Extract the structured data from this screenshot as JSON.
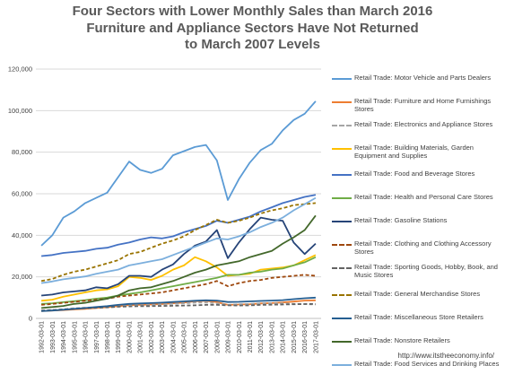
{
  "title_lines": [
    "Four Sectors with Lower Monthly Sales than March 2016",
    "Furniture and Appliance Sectors Have Not Returned",
    "to March 2007 Levels"
  ],
  "source": "http://www.itstheeconomy.info/",
  "chart_data": {
    "type": "line",
    "title": "Four Sectors with Lower Monthly Sales than March 2016 Furniture and Appliance Sectors Have Not Returned to March 2007 Levels",
    "xlabel": "",
    "ylabel": "",
    "ylim": [
      0,
      120000
    ],
    "yticks": [
      0,
      20000,
      40000,
      60000,
      80000,
      100000,
      120000
    ],
    "ytick_labels": [
      "0",
      "20,000",
      "40,000",
      "60,000",
      "80,000",
      "100,000",
      "120,000"
    ],
    "grid": true,
    "legend_position": "right",
    "x": [
      "1992-03-01",
      "1993-03-01",
      "1994-03-01",
      "1995-03-01",
      "1996-03-01",
      "1997-03-01",
      "1998-03-01",
      "1999-03-01",
      "2000-03-01",
      "2001-03-01",
      "2002-03-01",
      "2003-03-01",
      "2004-03-01",
      "2005-03-01",
      "2006-03-01",
      "2007-03-01",
      "2008-03-01",
      "2009-03-01",
      "2010-03-01",
      "2011-03-01",
      "2012-03-01",
      "2013-03-01",
      "2014-03-01",
      "2015-03-01",
      "2016-03-01",
      "2017-03-01"
    ],
    "series": [
      {
        "name": "Retail Trade: Motor Vehicle and Parts Dealers",
        "color": "#5b9bd5",
        "dashed": false,
        "values": [
          35000,
          40000,
          48500,
          51500,
          55500,
          58000,
          60500,
          68000,
          75500,
          71500,
          70000,
          72000,
          78500,
          80500,
          82500,
          83500,
          76000,
          57000,
          67000,
          75000,
          81000,
          84000,
          90500,
          95500,
          98500,
          104500
        ]
      },
      {
        "name": "Retail Trade: Furniture and Home Furnishings Stores",
        "color": "#ed7d31",
        "dashed": false,
        "values": [
          3500,
          3800,
          4000,
          4300,
          4600,
          5000,
          5400,
          5900,
          6400,
          6500,
          6700,
          6900,
          7300,
          7600,
          8300,
          8500,
          7800,
          6500,
          6700,
          6800,
          7200,
          7400,
          7700,
          8100,
          8600,
          8700
        ]
      },
      {
        "name": "Retail Trade: Electronics and Appliance Stores",
        "color": "#a5a5a5",
        "dashed": true,
        "values": [
          3700,
          4000,
          4400,
          4900,
          5200,
          5400,
          5500,
          5800,
          6300,
          6300,
          6500,
          6700,
          7000,
          7300,
          7600,
          7600,
          7300,
          6500,
          6800,
          7000,
          7300,
          7300,
          7200,
          7000,
          6900,
          6700
        ]
      },
      {
        "name": "Retail Trade: Building Materials, Garden Equipment and Supplies",
        "color": "#ffc000",
        "dashed": false,
        "values": [
          8500,
          9000,
          10500,
          11500,
          12500,
          13500,
          14000,
          15500,
          20000,
          19500,
          18500,
          20500,
          23500,
          25500,
          29500,
          27500,
          24500,
          20500,
          21000,
          21500,
          23500,
          24000,
          24500,
          25500,
          28000,
          30500
        ]
      },
      {
        "name": "Retail Trade: Food and Beverage Stores",
        "color": "#4472c4",
        "dashed": false,
        "values": [
          30000,
          30500,
          31500,
          32000,
          32500,
          33500,
          34000,
          35500,
          36500,
          38000,
          39000,
          38500,
          39500,
          41500,
          43000,
          44500,
          47000,
          46000,
          47500,
          49000,
          51500,
          53500,
          55500,
          57000,
          58500,
          59500
        ]
      },
      {
        "name": "Retail Trade: Health and Personal Care Stores",
        "color": "#70ad47",
        "dashed": false,
        "values": [
          7000,
          7300,
          7800,
          8300,
          8800,
          9500,
          10000,
          11000,
          11800,
          12500,
          13500,
          14500,
          15500,
          16500,
          17500,
          18500,
          19500,
          21000,
          21000,
          22000,
          22500,
          23500,
          24000,
          25500,
          27000,
          29500
        ]
      },
      {
        "name": "Retail Trade: Gasoline Stations",
        "color": "#264478",
        "dashed": false,
        "values": [
          11000,
          11500,
          12500,
          13000,
          13500,
          15000,
          14500,
          16500,
          20500,
          20500,
          20000,
          23500,
          26000,
          31000,
          35000,
          37000,
          42500,
          29000,
          36500,
          43000,
          48500,
          47500,
          47000,
          36500,
          31000,
          36000
        ]
      },
      {
        "name": "Retail Trade: Clothing and Clothing Accessory Stores",
        "color": "#9e480e",
        "dashed": true,
        "values": [
          6500,
          7000,
          7500,
          8000,
          8500,
          9000,
          9500,
          10500,
          11000,
          11500,
          12000,
          12500,
          13500,
          14500,
          15500,
          16500,
          18000,
          15500,
          17000,
          18000,
          18500,
          19500,
          20000,
          20500,
          21000,
          20500
        ]
      },
      {
        "name": "Retail Trade: Sporting Goods, Hobby, Book, and Music Stores",
        "color": "#636363",
        "dashed": true,
        "values": [
          3800,
          4000,
          4300,
          4600,
          4900,
          5100,
          5300,
          5600,
          5800,
          5900,
          5900,
          6000,
          6100,
          6200,
          6300,
          6500,
          6500,
          6300,
          6200,
          6300,
          6500,
          6600,
          6700,
          6800,
          6900,
          7000
        ]
      },
      {
        "name": "Retail Trade: General Merchandise Stores",
        "color": "#997300",
        "dashed": true,
        "values": [
          18000,
          19000,
          21000,
          22500,
          23500,
          25000,
          26500,
          28000,
          31000,
          32000,
          34000,
          36000,
          37500,
          39500,
          42500,
          45000,
          47500,
          46000,
          47000,
          48500,
          50500,
          52000,
          53000,
          54500,
          55000,
          55500
        ]
      },
      {
        "name": "Retail Trade: Miscellaneous Store Retailers",
        "color": "#255e91",
        "dashed": false,
        "values": [
          3500,
          3800,
          4200,
          4600,
          5000,
          5500,
          5900,
          6500,
          7000,
          7200,
          7400,
          7600,
          7900,
          8200,
          8500,
          8700,
          8600,
          7900,
          8000,
          8200,
          8400,
          8600,
          8800,
          9300,
          9700,
          10000
        ]
      },
      {
        "name": "Retail Trade: Nonstore Retailers",
        "color": "#43682b",
        "dashed": false,
        "values": [
          5000,
          5500,
          6000,
          7000,
          7500,
          8500,
          9500,
          11000,
          13500,
          14500,
          15000,
          16500,
          18000,
          20000,
          22000,
          23500,
          25500,
          26500,
          27500,
          29500,
          31000,
          32500,
          36000,
          39000,
          42500,
          49500
        ]
      },
      {
        "name": "Retail Trade: Food Services and Drinking Places",
        "color": "#7cafdd",
        "dashed": false,
        "values": [
          17000,
          17800,
          18800,
          19500,
          20200,
          21500,
          22500,
          23500,
          25500,
          26500,
          27500,
          28500,
          30500,
          32500,
          34500,
          36500,
          38500,
          38000,
          39500,
          41500,
          44000,
          46000,
          48500,
          52000,
          55000,
          58000
        ]
      }
    ]
  }
}
